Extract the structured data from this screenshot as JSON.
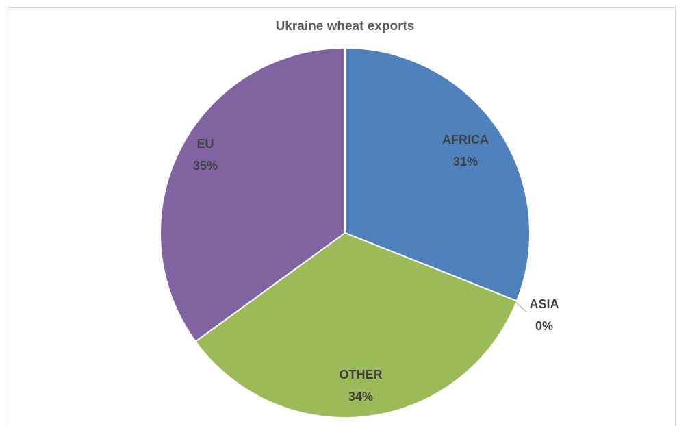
{
  "chart_data": {
    "type": "pie",
    "title": "Ukraine wheat exports",
    "slices": [
      {
        "name": "AFRICA",
        "value": 31,
        "label_value": "31%",
        "color": "#4f81bd"
      },
      {
        "name": "ASIA",
        "value": 0,
        "label_value": "0%",
        "color": "#c0504d"
      },
      {
        "name": "OTHER",
        "value": 34,
        "label_value": "34%",
        "color": "#9bbb59"
      },
      {
        "name": "EU",
        "value": 35,
        "label_value": "35%",
        "color": "#8064a2"
      }
    ],
    "start_direction": "top",
    "direction": "clockwise",
    "legend": "none"
  }
}
